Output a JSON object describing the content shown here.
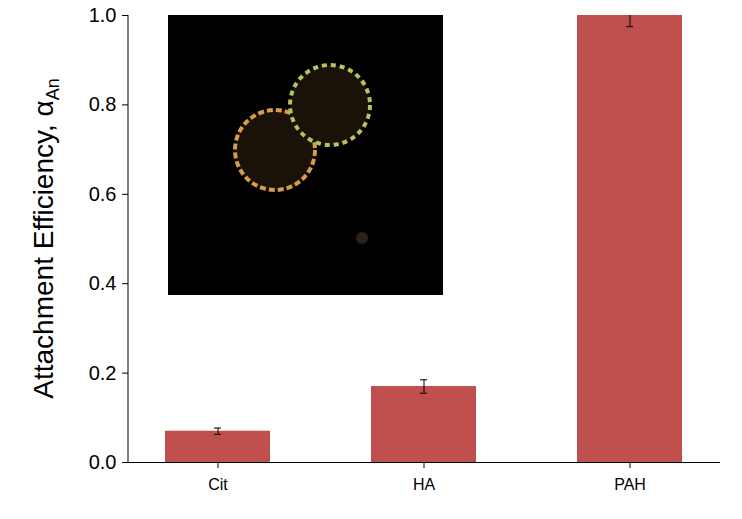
{
  "chart_data": {
    "type": "bar",
    "y_label": "Attachment Efficiency, α",
    "y_label_subscript": "An",
    "categories": [
      "Cit",
      "HA",
      "PAH"
    ],
    "values": [
      0.07,
      0.17,
      1.0
    ],
    "errors": [
      0.007,
      0.015,
      0.025
    ],
    "color": "#c0504d",
    "ylim": [
      0,
      1.0
    ],
    "yticks": [
      {
        "value": 0,
        "label": "0.0"
      },
      {
        "value": 0.2,
        "label": "0.2"
      },
      {
        "value": 0.4,
        "label": "0.4"
      },
      {
        "value": 0.6,
        "label": "0.6"
      },
      {
        "value": 0.8,
        "label": "0.8"
      },
      {
        "value": 1.0,
        "label": "1.0"
      }
    ],
    "grid": false
  }
}
